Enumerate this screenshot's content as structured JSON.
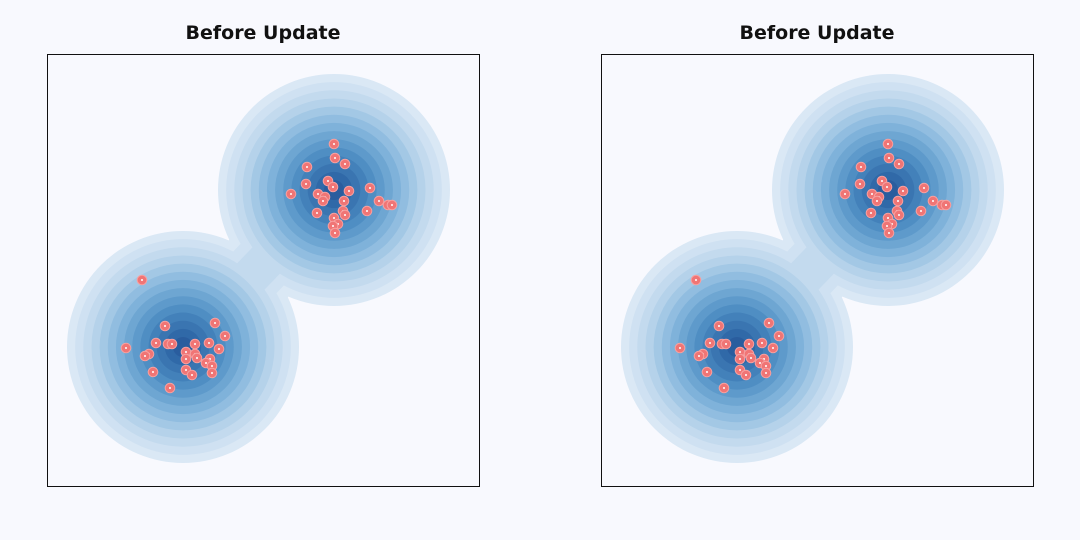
{
  "figure": {
    "background_color": "#f8f9fe",
    "contour_colors": [
      "#dae8f5",
      "#cfe1f2",
      "#c3daee",
      "#b5d2ea",
      "#a3c8e5",
      "#91bde0",
      "#7fb2da",
      "#6ea6d2",
      "#5e9acb",
      "#4f8ec3",
      "#4381ba",
      "#3a75b1",
      "#3069a8",
      "#2a5d9e"
    ],
    "point_color": "#f07575"
  },
  "chart_data": [
    {
      "type": "scatter",
      "title": "Before Update",
      "xlabel": "",
      "ylabel": "",
      "xlim": [
        0,
        432
      ],
      "ylim": [
        0,
        432
      ],
      "grid": false,
      "axis_ticks": false,
      "density": {
        "description_of_fill": "two gaussian blobs",
        "components": [
          {
            "center": [
              136,
              293
            ],
            "sigma": 40
          },
          {
            "center": [
              287,
              136
            ],
            "sigma": 40
          }
        ]
      },
      "points": [
        [
          287,
          90
        ],
        [
          288,
          104
        ],
        [
          298,
          110
        ],
        [
          260,
          113
        ],
        [
          259,
          130
        ],
        [
          244,
          140
        ],
        [
          281,
          127
        ],
        [
          286,
          133
        ],
        [
          302,
          137
        ],
        [
          323,
          134
        ],
        [
          271,
          140
        ],
        [
          278,
          143
        ],
        [
          297,
          147
        ],
        [
          276,
          147
        ],
        [
          332,
          147
        ],
        [
          341,
          151
        ],
        [
          345,
          151
        ],
        [
          270,
          159
        ],
        [
          296,
          157
        ],
        [
          298,
          161
        ],
        [
          320,
          157
        ],
        [
          287,
          164
        ],
        [
          291,
          170
        ],
        [
          286,
          172
        ],
        [
          288,
          179
        ],
        [
          95,
          226
        ],
        [
          168,
          269
        ],
        [
          118,
          272
        ],
        [
          178,
          282
        ],
        [
          79,
          294
        ],
        [
          109,
          289
        ],
        [
          121,
          290
        ],
        [
          125,
          290
        ],
        [
          162,
          289
        ],
        [
          148,
          290
        ],
        [
          172,
          295
        ],
        [
          102,
          300
        ],
        [
          98,
          302
        ],
        [
          139,
          298
        ],
        [
          148,
          300
        ],
        [
          150,
          304
        ],
        [
          139,
          305
        ],
        [
          163,
          305
        ],
        [
          159,
          309
        ],
        [
          165,
          312
        ],
        [
          106,
          318
        ],
        [
          139,
          316
        ],
        [
          145,
          321
        ],
        [
          165,
          319
        ],
        [
          123,
          334
        ]
      ]
    },
    {
      "type": "scatter",
      "title": "Before Update",
      "xlabel": "",
      "ylabel": "",
      "xlim": [
        0,
        432
      ],
      "ylim": [
        0,
        432
      ],
      "grid": false,
      "axis_ticks": false,
      "density": {
        "description_of_fill": "two gaussian blobs",
        "components": [
          {
            "center": [
              136,
              293
            ],
            "sigma": 40
          },
          {
            "center": [
              287,
              136
            ],
            "sigma": 40
          }
        ]
      },
      "points": [
        [
          287,
          90
        ],
        [
          288,
          104
        ],
        [
          298,
          110
        ],
        [
          260,
          113
        ],
        [
          259,
          130
        ],
        [
          244,
          140
        ],
        [
          281,
          127
        ],
        [
          286,
          133
        ],
        [
          302,
          137
        ],
        [
          323,
          134
        ],
        [
          271,
          140
        ],
        [
          278,
          143
        ],
        [
          297,
          147
        ],
        [
          276,
          147
        ],
        [
          332,
          147
        ],
        [
          341,
          151
        ],
        [
          345,
          151
        ],
        [
          270,
          159
        ],
        [
          296,
          157
        ],
        [
          298,
          161
        ],
        [
          320,
          157
        ],
        [
          287,
          164
        ],
        [
          291,
          170
        ],
        [
          286,
          172
        ],
        [
          288,
          179
        ],
        [
          95,
          226
        ],
        [
          118,
          272
        ],
        [
          168,
          269
        ],
        [
          178,
          282
        ],
        [
          79,
          294
        ],
        [
          109,
          289
        ],
        [
          121,
          290
        ],
        [
          125,
          290
        ],
        [
          161,
          289
        ],
        [
          148,
          290
        ],
        [
          172,
          294
        ],
        [
          102,
          300
        ],
        [
          98,
          302
        ],
        [
          139,
          298
        ],
        [
          148,
          300
        ],
        [
          150,
          304
        ],
        [
          139,
          305
        ],
        [
          163,
          305
        ],
        [
          159,
          309
        ],
        [
          165,
          312
        ],
        [
          106,
          318
        ],
        [
          139,
          316
        ],
        [
          145,
          321
        ],
        [
          165,
          319
        ],
        [
          123,
          334
        ]
      ]
    }
  ]
}
